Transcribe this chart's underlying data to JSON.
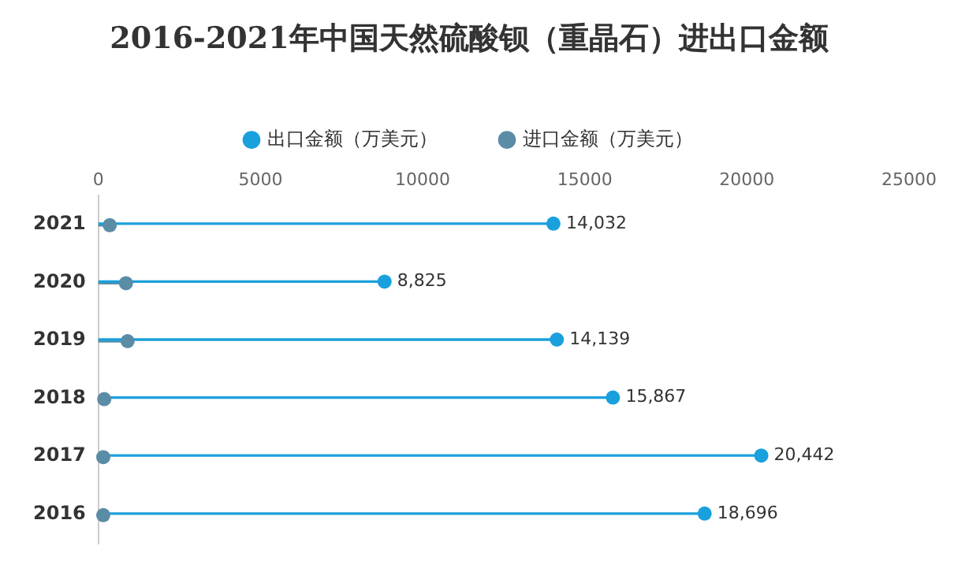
{
  "chart_data": {
    "type": "lollipop",
    "orientation": "horizontal",
    "title": "2016-2021年中国天然硫酸钡（重晶石）进出口金额",
    "categories": [
      "2021",
      "2020",
      "2019",
      "2018",
      "2017",
      "2016"
    ],
    "series": [
      {
        "name": "出口金额（万美元）",
        "color": "#1aa0dc",
        "values": [
          14032,
          8825,
          14139,
          15867,
          20442,
          18696
        ],
        "value_labels": [
          "14,032",
          "8,825",
          "14,139",
          "15,867",
          "20,442",
          "18,696"
        ]
      },
      {
        "name": "进口金额（万美元）",
        "color": "#5b8ca6",
        "values": [
          350,
          850,
          900,
          180,
          150,
          150
        ]
      }
    ],
    "xlim": [
      0,
      25000
    ],
    "xticks": [
      0,
      5000,
      10000,
      15000,
      20000,
      25000
    ],
    "grid": false,
    "legend": "top",
    "marker": "circle"
  }
}
